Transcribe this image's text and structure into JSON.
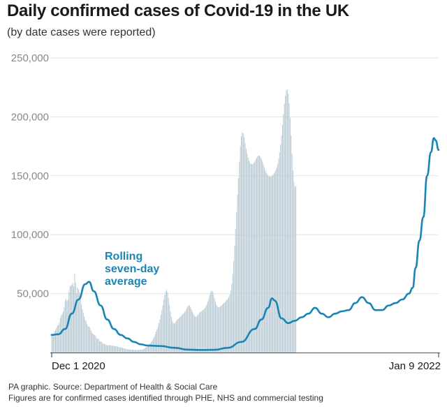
{
  "title": "Daily confirmed cases of Covid-19 in the UK",
  "subtitle": "(by date cases were reported)",
  "footer": {
    "line1": "PA graphic. Source: Department of Health & Social Care",
    "line2": "Figures are for confirmed cases identified through PHE, NHS and commercial testing"
  },
  "colors": {
    "bars": "#b9cad4",
    "average_line": "#1a85b4",
    "gridline": "#e2e2e2",
    "axis_text": "#888888"
  },
  "chart_data": {
    "type": "bar",
    "x_range": [
      "2020-12-01",
      "2022-01-09"
    ],
    "x_tick_labels": [
      "Dec 1 2020",
      "Jan 9 2022"
    ],
    "ylim": [
      0,
      250000
    ],
    "y_ticks": [
      50000,
      100000,
      150000,
      200000,
      250000
    ],
    "y_tick_labels": [
      "50,000",
      "100,000",
      "150,000",
      "200,000",
      "250,000"
    ],
    "grid": true,
    "series": [
      {
        "kind": "line",
        "annotation": "Rolling seven-day average",
        "points": [
          [
            "2020-12-01",
            15000
          ],
          [
            "2020-12-08",
            15500
          ],
          [
            "2020-12-15",
            20000
          ],
          [
            "2020-12-22",
            33000
          ],
          [
            "2020-12-29",
            45000
          ],
          [
            "2021-01-05",
            58000
          ],
          [
            "2021-01-09",
            60000
          ],
          [
            "2021-01-14",
            52000
          ],
          [
            "2021-01-21",
            40000
          ],
          [
            "2021-01-28",
            28000
          ],
          [
            "2021-02-04",
            20000
          ],
          [
            "2021-02-11",
            15000
          ],
          [
            "2021-02-18",
            12000
          ],
          [
            "2021-02-25",
            9000
          ],
          [
            "2021-03-04",
            7000
          ],
          [
            "2021-03-11",
            6000
          ],
          [
            "2021-03-25",
            5500
          ],
          [
            "2021-04-08",
            4000
          ],
          [
            "2021-04-22",
            2500
          ],
          [
            "2021-05-06",
            2200
          ],
          [
            "2021-05-20",
            2300
          ],
          [
            "2021-06-03",
            4000
          ],
          [
            "2021-06-17",
            9000
          ],
          [
            "2021-07-01",
            20000
          ],
          [
            "2021-07-08",
            28000
          ],
          [
            "2021-07-15",
            38000
          ],
          [
            "2021-07-19",
            46000
          ],
          [
            "2021-07-22",
            44000
          ],
          [
            "2021-07-29",
            29000
          ],
          [
            "2021-08-05",
            25000
          ],
          [
            "2021-08-12",
            27000
          ],
          [
            "2021-08-19",
            30000
          ],
          [
            "2021-08-26",
            33000
          ],
          [
            "2021-09-02",
            38000
          ],
          [
            "2021-09-09",
            33000
          ],
          [
            "2021-09-16",
            30000
          ],
          [
            "2021-09-23",
            33000
          ],
          [
            "2021-09-30",
            35000
          ],
          [
            "2021-10-07",
            36000
          ],
          [
            "2021-10-14",
            42000
          ],
          [
            "2021-10-21",
            47000
          ],
          [
            "2021-10-28",
            42000
          ],
          [
            "2021-11-04",
            36000
          ],
          [
            "2021-11-11",
            36000
          ],
          [
            "2021-11-18",
            40000
          ],
          [
            "2021-11-25",
            42000
          ],
          [
            "2021-12-02",
            45000
          ],
          [
            "2021-12-09",
            50000
          ],
          [
            "2021-12-13",
            55000
          ],
          [
            "2021-12-16",
            72000
          ],
          [
            "2021-12-20",
            95000
          ],
          [
            "2021-12-24",
            115000
          ],
          [
            "2021-12-28",
            150000
          ],
          [
            "2022-01-01",
            170000
          ],
          [
            "2022-01-04",
            182000
          ],
          [
            "2022-01-06",
            180000
          ],
          [
            "2022-01-09",
            172000
          ]
        ]
      },
      {
        "kind": "bars",
        "daily_values": [
          15000,
          15871,
          14981,
          18040,
          19133,
          21133,
          23067,
          23267,
          25012,
          29311,
          31662,
          32553,
          34802,
          38296,
          44044,
          45722,
          43788,
          44989,
          51294,
          56018,
          56826,
          57721,
          59286,
          55926,
          66800,
          59432,
          50436,
          54999,
          53617,
          51007,
          45008,
          41081,
          36991,
          33662,
          30597,
          27841,
          26373,
          24097,
          22159,
          22056,
          21189,
          18868,
          17007,
          15836,
          15328,
          14497,
          13718,
          11956,
          11771,
          11394,
          9722,
          9513,
          9287,
          7932,
          7584,
          7312,
          6935,
          6581,
          6236,
          5895,
          6244,
          6104,
          6009,
          5910,
          5705,
          5593,
          5448,
          5315,
          5219,
          4997,
          4795,
          4608,
          4456,
          4316,
          3928,
          3737,
          3464,
          3232,
          2983,
          2842,
          2733,
          2576,
          2508,
          2498,
          2448,
          2315,
          2252,
          2254,
          2146,
          2111,
          2180,
          2310,
          2358,
          2390,
          2466,
          2630,
          3077,
          3576,
          4123,
          4657,
          5295,
          6022,
          6914,
          7929,
          9071,
          10372,
          11834,
          13513,
          15444,
          17680,
          19859,
          22118,
          25007,
          28251,
          31919,
          35823,
          40236,
          44917,
          49004,
          51982,
          53213,
          51088,
          46183,
          40291,
          34712,
          30121,
          26871,
          25047,
          24712,
          25396,
          26738,
          27819,
          28621,
          29347,
          30147,
          30994,
          31844,
          32637,
          33476,
          34517,
          35876,
          37526,
          39034,
          39992,
          39934,
          38715,
          36738,
          34634,
          32758,
          31279,
          30447,
          30498,
          31357,
          32487,
          33498,
          34298,
          34914,
          35459,
          36052,
          36847,
          37883,
          39218,
          40926,
          43150,
          45875,
          48794,
          51243,
          52463,
          51847,
          49447,
          46151,
          42950,
          40469,
          38980,
          38356,
          38469,
          38975,
          39657,
          40424,
          41272,
          42117,
          42961,
          43839,
          44762,
          45796,
          47059,
          49208,
          52764,
          58336,
          66516,
          77448,
          90568,
          104848,
          119448,
          133917,
          148089,
          162063,
          174886,
          183715,
          186892,
          186053,
          182573,
          177822,
          173147,
          169016,
          165658,
          163055,
          161185,
          160116,
          159726,
          159977,
          160822,
          162140,
          163727,
          165279,
          166496,
          167112,
          166971,
          166039,
          164397,
          162217,
          159719,
          157161,
          154784,
          152770,
          151202,
          150110,
          149478,
          149263,
          149410,
          149874,
          150628,
          151678,
          153069,
          154886,
          157260,
          160380,
          164484,
          169809,
          176473,
          184407,
          193272,
          202444,
          211044,
          218081,
          222491,
          223249,
          219640,
          211474,
          199263,
          184306,
          168624,
          154674,
          144757,
          140348,
          141594
        ]
      }
    ]
  }
}
